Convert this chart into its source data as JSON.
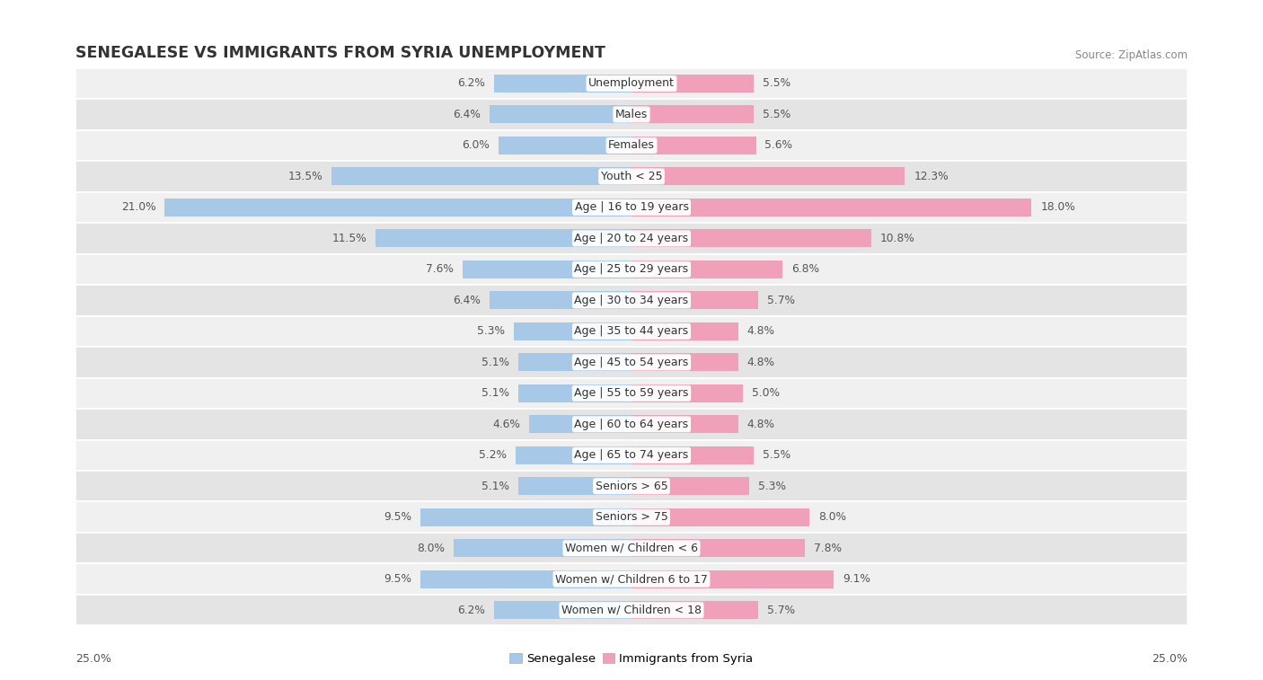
{
  "title": "SENEGALESE VS IMMIGRANTS FROM SYRIA UNEMPLOYMENT",
  "source": "Source: ZipAtlas.com",
  "categories": [
    "Unemployment",
    "Males",
    "Females",
    "Youth < 25",
    "Age | 16 to 19 years",
    "Age | 20 to 24 years",
    "Age | 25 to 29 years",
    "Age | 30 to 34 years",
    "Age | 35 to 44 years",
    "Age | 45 to 54 years",
    "Age | 55 to 59 years",
    "Age | 60 to 64 years",
    "Age | 65 to 74 years",
    "Seniors > 65",
    "Seniors > 75",
    "Women w/ Children < 6",
    "Women w/ Children 6 to 17",
    "Women w/ Children < 18"
  ],
  "senegalese": [
    6.2,
    6.4,
    6.0,
    13.5,
    21.0,
    11.5,
    7.6,
    6.4,
    5.3,
    5.1,
    5.1,
    4.6,
    5.2,
    5.1,
    9.5,
    8.0,
    9.5,
    6.2
  ],
  "syria": [
    5.5,
    5.5,
    5.6,
    12.3,
    18.0,
    10.8,
    6.8,
    5.7,
    4.8,
    4.8,
    5.0,
    4.8,
    5.5,
    5.3,
    8.0,
    7.8,
    9.1,
    5.7
  ],
  "max_val": 25.0,
  "blue_color": "#a8c8e8",
  "pink_color": "#f0a0b8",
  "row_bg_even": "#f0f0f0",
  "row_bg_odd": "#e4e4e4",
  "bar_height": 0.58,
  "label_fontsize": 9.0,
  "value_fontsize": 8.8,
  "title_fontsize": 12.5,
  "source_fontsize": 8.5,
  "legend_blue": "Senegalese",
  "legend_pink": "Immigrants from Syria",
  "bottom_label": "25.0%"
}
